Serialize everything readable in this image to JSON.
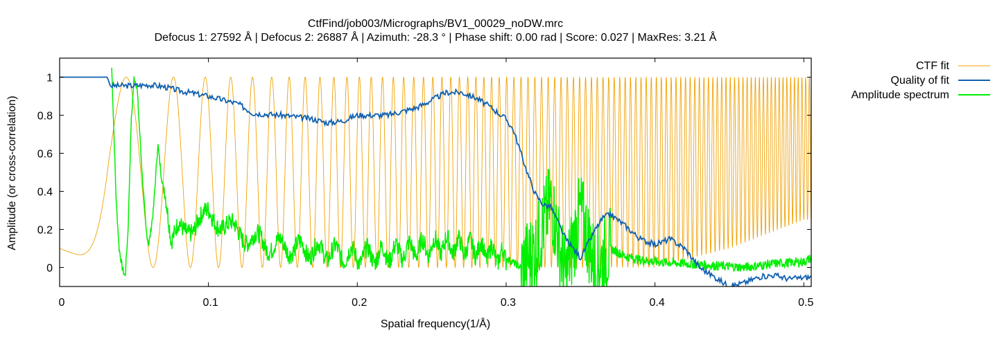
{
  "chart_data": {
    "type": "line",
    "title": "CtfFind/job003/Micrographs/BV1_00029_noDW.mrc",
    "subtitle": "Defocus 1: 27592 Å | Defocus 2: 26887 Å | Azimuth: -28.3 ° | Phase shift: 0.00 rad | Score: 0.027 | MaxRes: 3.21 Å",
    "xlabel": "Spatial frequency(1/Å)",
    "ylabel": "Amplitude (or cross-correlation)",
    "xlim": [
      0,
      0.505
    ],
    "ylim": [
      -0.1,
      1.1
    ],
    "x_ticks": [
      0,
      0.1,
      0.2,
      0.3,
      0.4,
      0.5
    ],
    "x_tick_labels": [
      "0",
      "0.1",
      "0.2",
      "0.3",
      "0.4",
      "0.5"
    ],
    "y_ticks": [
      0,
      0.2,
      0.4,
      0.6,
      0.8,
      1
    ],
    "y_tick_labels": [
      "0",
      "0.2",
      "0.4",
      "0.6",
      "0.8",
      "1"
    ],
    "grid": false,
    "legend_position": "outside-right",
    "series": [
      {
        "name": "CTF fit",
        "color": "#f0a000",
        "description_model": "oscillating CTF envelope",
        "x": [
          0,
          0.033,
          0.045,
          0.06,
          0.08,
          0.1,
          0.15,
          0.2,
          0.25,
          0.3,
          0.35,
          0.4,
          0.45,
          0.5,
          0.505
        ],
        "peak": [
          0.1,
          1.0,
          1.0,
          1.0,
          1.0,
          1.0,
          1.0,
          1.0,
          1.0,
          1.0,
          1.0,
          1.0,
          1.0,
          1.0,
          1.0
        ],
        "trough": [
          0.1,
          0.0,
          0.0,
          0.0,
          0.0,
          0.0,
          0.0,
          0.0,
          0.0,
          0.0,
          0.0,
          0.0,
          0.1,
          0.25,
          0.25
        ]
      },
      {
        "name": "Quality of fit",
        "color": "#1060b0",
        "x": [
          0,
          0.032,
          0.034,
          0.05,
          0.06,
          0.07,
          0.08,
          0.1,
          0.11,
          0.12,
          0.13,
          0.15,
          0.17,
          0.18,
          0.19,
          0.2,
          0.22,
          0.24,
          0.25,
          0.26,
          0.27,
          0.28,
          0.29,
          0.3,
          0.305,
          0.31,
          0.315,
          0.32,
          0.325,
          0.33,
          0.34,
          0.35,
          0.36,
          0.365,
          0.37,
          0.38,
          0.39,
          0.4,
          0.41,
          0.42,
          0.43,
          0.44,
          0.45,
          0.46,
          0.47,
          0.48,
          0.49,
          0.505
        ],
        "y": [
          1.0,
          1.0,
          0.955,
          0.955,
          0.96,
          0.95,
          0.93,
          0.9,
          0.88,
          0.86,
          0.81,
          0.8,
          0.78,
          0.76,
          0.77,
          0.8,
          0.8,
          0.84,
          0.88,
          0.92,
          0.92,
          0.89,
          0.84,
          0.78,
          0.72,
          0.6,
          0.48,
          0.38,
          0.33,
          0.32,
          0.15,
          0.05,
          0.2,
          0.26,
          0.28,
          0.22,
          0.15,
          0.12,
          0.15,
          0.1,
          0.0,
          -0.05,
          -0.1,
          -0.08,
          -0.05,
          -0.04,
          -0.06,
          -0.05
        ]
      },
      {
        "name": "Amplitude spectrum",
        "color": "#00ee00",
        "x": [
          0.035,
          0.038,
          0.04,
          0.042,
          0.044,
          0.046,
          0.048,
          0.05,
          0.052,
          0.055,
          0.058,
          0.06,
          0.063,
          0.066,
          0.068,
          0.07,
          0.075,
          0.08,
          0.09,
          0.1,
          0.12,
          0.14,
          0.16,
          0.18,
          0.2,
          0.22,
          0.24,
          0.26,
          0.28,
          0.3,
          0.31,
          0.32,
          0.33,
          0.34,
          0.35,
          0.36,
          0.37,
          0.38,
          0.39,
          0.4,
          0.42,
          0.44,
          0.46,
          0.48,
          0.5,
          0.505
        ],
        "y": [
          1.05,
          0.35,
          0.1,
          0.0,
          -0.05,
          0.2,
          0.75,
          1.0,
          0.95,
          0.55,
          0.2,
          0.12,
          0.3,
          0.65,
          0.5,
          0.4,
          0.1,
          0.25,
          0.2,
          0.28,
          0.18,
          0.12,
          0.1,
          0.08,
          0.06,
          0.07,
          0.1,
          0.12,
          0.1,
          0.05,
          0.0,
          0.1,
          0.35,
          -0.05,
          0.3,
          0.0,
          0.1,
          0.06,
          0.04,
          0.03,
          0.02,
          0.01,
          0.0,
          0.02,
          0.03,
          0.05
        ]
      }
    ]
  }
}
